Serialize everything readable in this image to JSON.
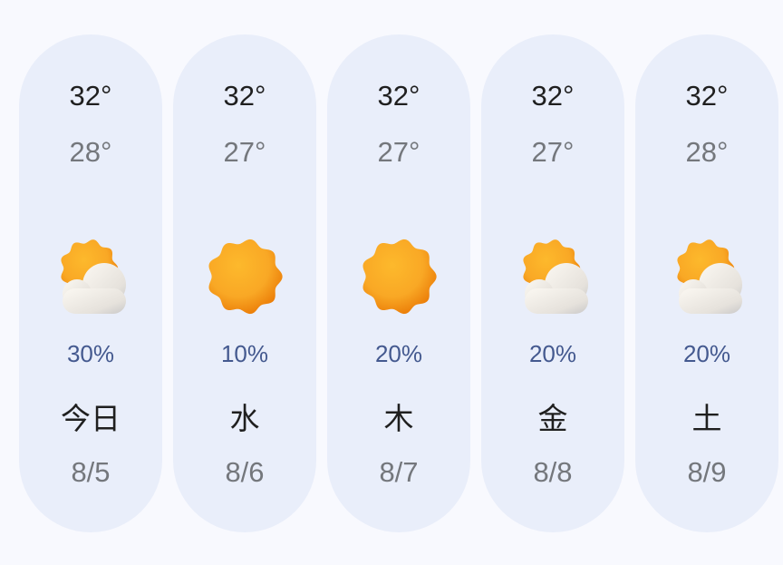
{
  "forecast": [
    {
      "high": "32°",
      "low": "28°",
      "icon": "partly-cloudy-icon",
      "precip": "30%",
      "day": "今日",
      "date": "8/5"
    },
    {
      "high": "32°",
      "low": "27°",
      "icon": "sunny-icon",
      "precip": "10%",
      "day": "水",
      "date": "8/6"
    },
    {
      "high": "32°",
      "low": "27°",
      "icon": "sunny-icon",
      "precip": "20%",
      "day": "木",
      "date": "8/7"
    },
    {
      "high": "32°",
      "low": "27°",
      "icon": "partly-cloudy-icon",
      "precip": "20%",
      "day": "金",
      "date": "8/8"
    },
    {
      "high": "32°",
      "low": "28°",
      "icon": "partly-cloudy-icon",
      "precip": "20%",
      "day": "土",
      "date": "8/9"
    }
  ],
  "colors": {
    "background": "#f8f9fe",
    "card": "#e9eefa",
    "precip": "#44598f",
    "sun": "#f9a825"
  }
}
